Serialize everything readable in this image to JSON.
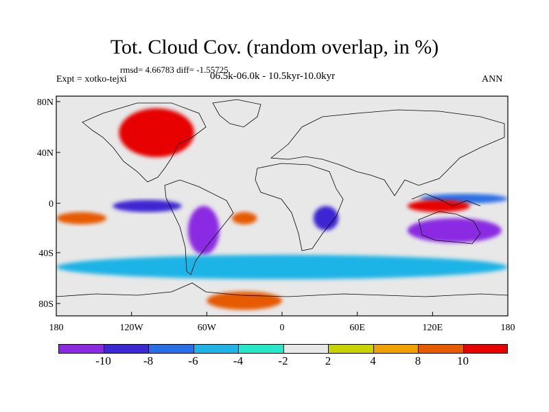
{
  "plot": {
    "title": "Tot. Cloud Cov. (random overlap, in %)",
    "stats": "rmsd= 4.66783  diff= -1.55725",
    "experiment": "Expt = xotko-tejxi",
    "period": "06.5k-06.0k - 10.5kyr-10.0kyr",
    "season": "ANN"
  },
  "chart_data": {
    "type": "heatmap",
    "title": "Tot. Cloud Cov. (random overlap, in %)",
    "x_ticks": [
      "180",
      "120W",
      "60W",
      "0",
      "60E",
      "120E",
      "180"
    ],
    "y_ticks": [
      "80N",
      "40N",
      "0",
      "40S",
      "80S"
    ],
    "lon_range": [
      -180,
      180
    ],
    "lat_range": [
      -90,
      90
    ],
    "colorbar": {
      "labels": [
        "-10",
        "-8",
        "-6",
        "-4",
        "-2",
        "2",
        "4",
        "8",
        "10"
      ],
      "colors": [
        "#8a2be2",
        "#3c28d2",
        "#2a6ee6",
        "#1eb4e6",
        "#28e6c8",
        "#e8e8e8",
        "#c8d200",
        "#f0a000",
        "#e65a00",
        "#e60000"
      ]
    },
    "anomaly_regions": [
      {
        "lon": [
          -135,
          -80
        ],
        "lat": [
          -5,
          5
        ],
        "level": "-8"
      },
      {
        "lon": [
          -75,
          -50
        ],
        "lat": [
          -40,
          0
        ],
        "level": "-10"
      },
      {
        "lon": [
          100,
          175
        ],
        "lat": [
          -30,
          -10
        ],
        "level": "-10"
      },
      {
        "lon": [
          110,
          180
        ],
        "lat": [
          2,
          10
        ],
        "level": "-6"
      },
      {
        "lon": [
          25,
          45
        ],
        "lat": [
          -20,
          0
        ],
        "level": "-8"
      },
      {
        "lon": [
          -130,
          -70
        ],
        "lat": [
          40,
          80
        ],
        "level": "10"
      },
      {
        "lon": [
          -40,
          -20
        ],
        "lat": [
          -15,
          -5
        ],
        "level": "8"
      },
      {
        "lon": [
          100,
          150
        ],
        "lat": [
          -5,
          5
        ],
        "level": "10"
      },
      {
        "lon": [
          -180,
          -140
        ],
        "lat": [
          -15,
          -5
        ],
        "level": "8"
      },
      {
        "lon": [
          -180,
          180
        ],
        "lat": [
          -60,
          -40
        ],
        "level": "-4"
      },
      {
        "lon": [
          -60,
          0
        ],
        "lat": [
          -85,
          -70
        ],
        "level": "8"
      }
    ]
  }
}
